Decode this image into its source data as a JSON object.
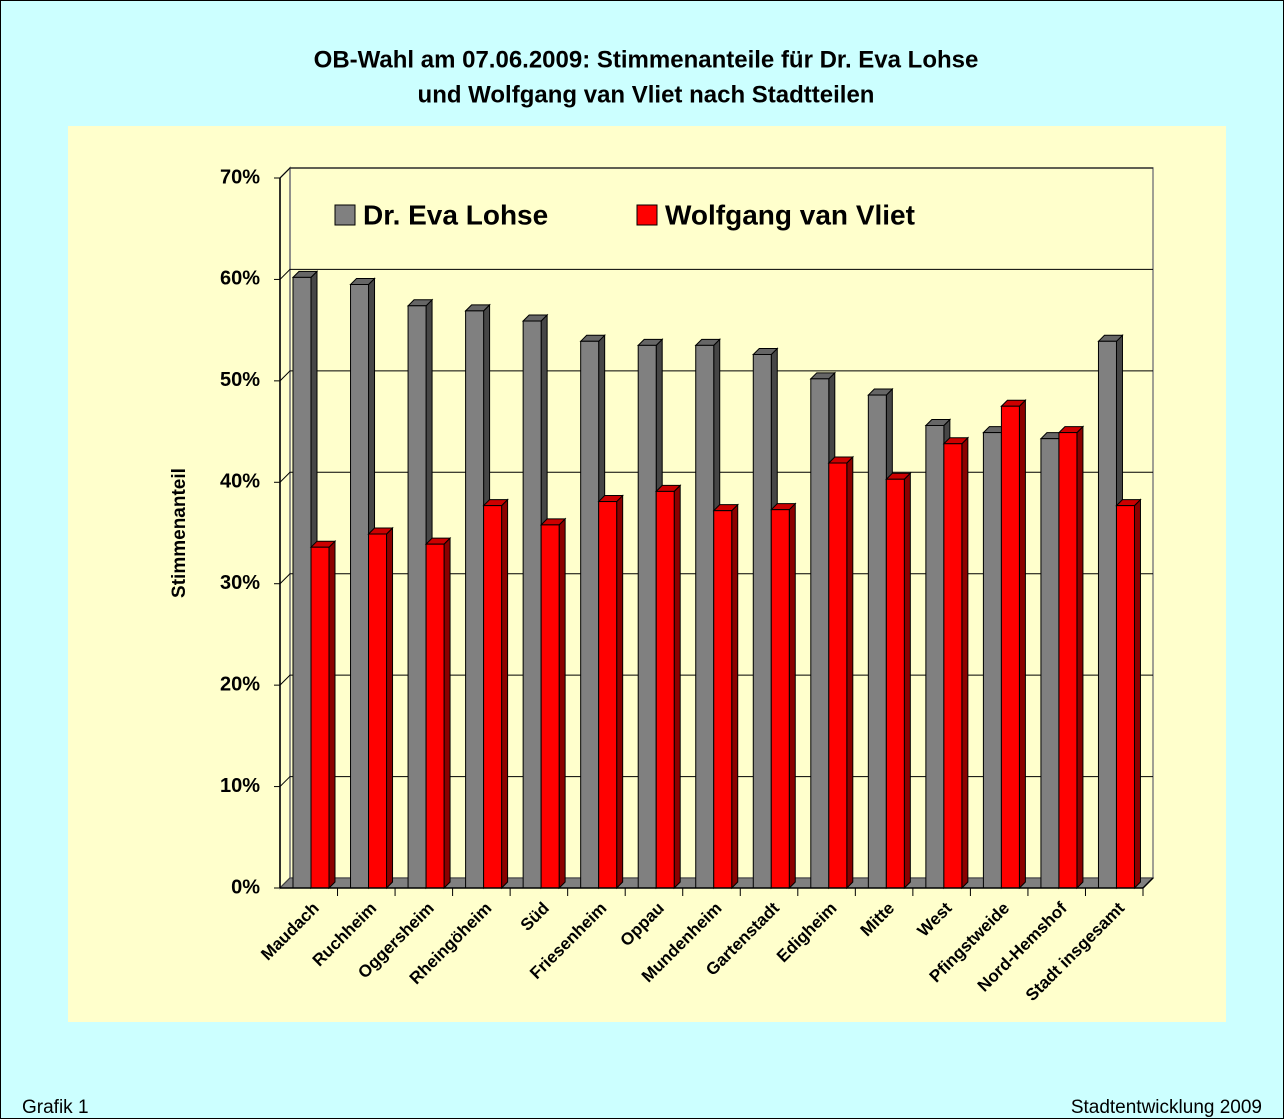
{
  "chart_data": {
    "type": "bar",
    "title": [
      "OB-Wahl am 07.06.2009: Stimmenanteile für Dr. Eva Lohse",
      "und Wolfgang van Vliet nach Stadtteilen"
    ],
    "ylabel": "Stimmenanteil",
    "categories": [
      "Maudach",
      "Ruchheim",
      "Oggersheim",
      "Rheingöheim",
      "Süd",
      "Friesenheim",
      "Oppau",
      "Mundenheim",
      "Gartenstadt",
      "Edigheim",
      "Mitte",
      "West",
      "Pfingstweide",
      "Nord-Hemshof",
      "Stadt insgesamt"
    ],
    "series": [
      {
        "name": "Dr. Eva Lohse",
        "color": "#808080",
        "values": [
          60.2,
          59.5,
          57.4,
          56.9,
          55.9,
          53.9,
          53.5,
          53.5,
          52.6,
          50.2,
          48.6,
          45.6,
          44.9,
          44.3,
          53.9
        ]
      },
      {
        "name": "Wolfgang van Vliet",
        "color": "#ff0000",
        "values": [
          33.6,
          34.9,
          33.9,
          37.7,
          35.8,
          38.1,
          39.1,
          37.2,
          37.3,
          41.9,
          40.3,
          43.8,
          47.5,
          44.9,
          37.7
        ]
      }
    ],
    "ylim": [
      0,
      70
    ],
    "yticks": [
      {
        "value": 0,
        "label": "0%"
      },
      {
        "value": 10,
        "label": "10%"
      },
      {
        "value": 20,
        "label": "20%"
      },
      {
        "value": 30,
        "label": "30%"
      },
      {
        "value": 40,
        "label": "40%"
      },
      {
        "value": 50,
        "label": "50%"
      },
      {
        "value": 60,
        "label": "60%"
      },
      {
        "value": 70,
        "label": "70%"
      }
    ],
    "grid": true,
    "legend": "top",
    "footer_left": "Grafik 1",
    "footer_right": "Stadtentwicklung 2009"
  }
}
